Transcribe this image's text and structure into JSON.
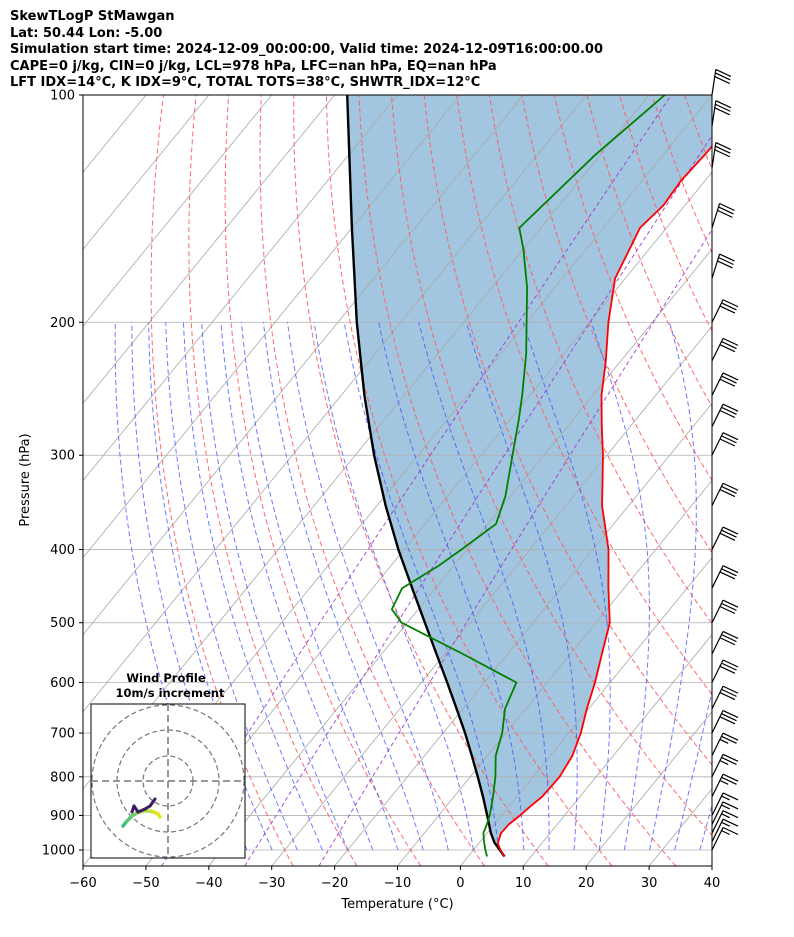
{
  "header": {
    "line1": "SkewTLogP StMawgan",
    "line2": "Lat: 50.44   Lon: -5.00",
    "line3": "Simulation start time: 2024-12-09_00:00:00, Valid time: 2024-12-09T16:00:00.00",
    "line4": "CAPE=0 j/kg, CIN=0 j/kg, LCL=978 hPa, LFC=nan hPa, EQ=nan hPa",
    "line5": "LFT IDX=14$^\\circ$C, K IDX=9$^\\circ$C, TOTAL TOTS=38$^\\circ$C, SHWTR_IDX=12$^\\circ$C"
  },
  "chart_data": {
    "type": "line",
    "xlabel": "Temperature ($^\\circ$C)",
    "ylabel": "Pressure (hPa)",
    "xlim": [
      -60,
      40
    ],
    "ylim": [
      1050,
      100
    ],
    "y_scale": "log",
    "x_ticks": [
      "−60",
      "−50",
      "−40",
      "−30",
      "−20",
      "−10",
      "0",
      "10",
      "20",
      "30",
      "40"
    ],
    "x_tick_values": [
      -60,
      -50,
      -40,
      -30,
      -20,
      -10,
      0,
      10,
      20,
      30,
      40
    ],
    "y_ticks": [
      "1000",
      "900",
      "800",
      "700",
      "600",
      "500",
      "400",
      "300",
      "200",
      "100"
    ],
    "y_tick_values": [
      1000,
      900,
      800,
      700,
      600,
      500,
      400,
      300,
      200,
      100
    ],
    "grid": true,
    "temperature": {
      "color": "#ff0000",
      "p": [
        1020,
        1000,
        980,
        950,
        925,
        900,
        875,
        850,
        800,
        750,
        700,
        650,
        600,
        550,
        500,
        450,
        400,
        350,
        300,
        275,
        250,
        225,
        200,
        175,
        150,
        140,
        130,
        120,
        110,
        100
      ],
      "t": [
        5.8,
        4.3,
        3.0,
        2.2,
        2.3,
        2.9,
        3.4,
        4.0,
        4.2,
        3.5,
        1.9,
        -0.3,
        -2.4,
        -5.0,
        -7.8,
        -12.5,
        -17.5,
        -24.2,
        -30.6,
        -34.5,
        -38.6,
        -42.4,
        -47.0,
        -51.6,
        -54.2,
        -53.4,
        -53.8,
        -53.4,
        -53.2,
        -52.6
      ]
    },
    "dewpoint": {
      "color": "#008000",
      "p": [
        1020,
        1000,
        975,
        950,
        925,
        900,
        850,
        800,
        750,
        700,
        650,
        600,
        550,
        500,
        480,
        450,
        420,
        400,
        370,
        340,
        300,
        270,
        250,
        220,
        200,
        180,
        160,
        150,
        120,
        100
      ],
      "t": [
        3.0,
        1.9,
        0.6,
        -0.6,
        -1.2,
        -1.9,
        -3.8,
        -6.0,
        -8.7,
        -10.6,
        -13.3,
        -14.9,
        -27.1,
        -40.9,
        -44.2,
        -45.3,
        -42.4,
        -40.9,
        -38.7,
        -40.8,
        -45.0,
        -48.5,
        -51.2,
        -56.0,
        -60.0,
        -64.4,
        -70.0,
        -73.4,
        -70.8,
        -67.5
      ]
    },
    "parcel": {
      "color": "#000000",
      "p": [
        1020,
        978,
        950,
        900,
        850,
        800,
        750,
        700,
        650,
        600,
        550,
        500,
        450,
        400,
        350,
        300,
        250,
        200,
        150,
        100
      ],
      "t": [
        5.8,
        2.4,
        0.6,
        -2.3,
        -5.4,
        -8.8,
        -12.5,
        -16.5,
        -21.0,
        -25.9,
        -31.3,
        -37.2,
        -43.7,
        -50.9,
        -58.6,
        -67.0,
        -76.3,
        -87.0,
        -100.0,
        -118.0
      ]
    },
    "wind_profile_inset": {
      "title": "Wind Profile\n10m/s increment",
      "rings_ms": [
        10,
        20,
        30
      ]
    },
    "wind_barbs": {
      "p": [
        1000,
        975,
        950,
        925,
        900,
        850,
        800,
        750,
        700,
        650,
        600,
        550,
        500,
        450,
        400,
        350,
        300,
        275,
        250,
        225,
        200,
        175,
        150,
        125,
        110,
        100
      ]
    }
  }
}
